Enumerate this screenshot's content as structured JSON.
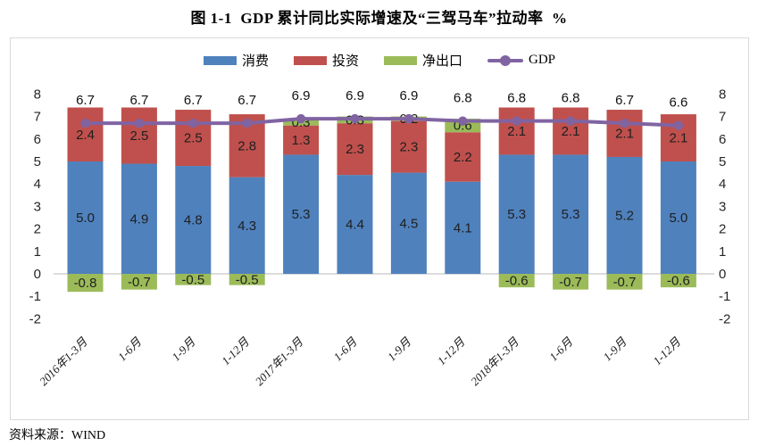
{
  "title": "图 1-1  GDP 累计同比实际增速及“三驾马车”拉动率  %",
  "footer": {
    "source_label": "资料来源：WIND"
  },
  "chart_data": {
    "type": "bar",
    "subtype": "stacked-column-with-line-overlay",
    "title": "图 1-1  GDP 累计同比实际增速及“三驾马车”拉动率  %",
    "unit": "%",
    "categories": [
      "2016年1-3月",
      "1-6月",
      "1-9月",
      "1-12月",
      "2017年1-3月",
      "1-6月",
      "1-9月",
      "1-12月",
      "2018年1-3月",
      "1-6月",
      "1-9月",
      "1-12月"
    ],
    "series": [
      {
        "name": "消费",
        "key": "consumption",
        "type": "bar",
        "color": "#4F81BD",
        "values": [
          5.0,
          4.9,
          4.8,
          4.3,
          5.3,
          4.4,
          4.5,
          4.1,
          5.3,
          5.3,
          5.2,
          5.0
        ]
      },
      {
        "name": "投资",
        "key": "investment",
        "type": "bar",
        "color": "#C0504D",
        "values": [
          2.4,
          2.5,
          2.5,
          2.8,
          1.3,
          2.3,
          2.3,
          2.2,
          2.1,
          2.1,
          2.1,
          2.1
        ]
      },
      {
        "name": "净出口",
        "key": "net-export",
        "type": "bar",
        "color": "#9BBB59",
        "values": [
          -0.8,
          -0.7,
          -0.5,
          -0.5,
          0.3,
          0.3,
          0.2,
          0.6,
          -0.6,
          -0.7,
          -0.7,
          -0.6
        ]
      },
      {
        "name": "GDP",
        "key": "gdp",
        "type": "line",
        "color": "#8064A2",
        "values": [
          6.7,
          6.7,
          6.7,
          6.7,
          6.9,
          6.9,
          6.9,
          6.8,
          6.8,
          6.8,
          6.7,
          6.6
        ]
      }
    ],
    "ylim": [
      -2,
      8
    ],
    "yticks": [
      8,
      7,
      6,
      5,
      4,
      3,
      2,
      1,
      0,
      -1,
      -2
    ],
    "axis_sides": [
      "left",
      "right"
    ],
    "grid": false,
    "legend_position": "top",
    "value_labels": true
  },
  "colors": {
    "zero_line": "#C6C6C6",
    "frame_border": "#D9D9D9",
    "label_text": "#1F1F1F",
    "tick_text": "#262626"
  }
}
